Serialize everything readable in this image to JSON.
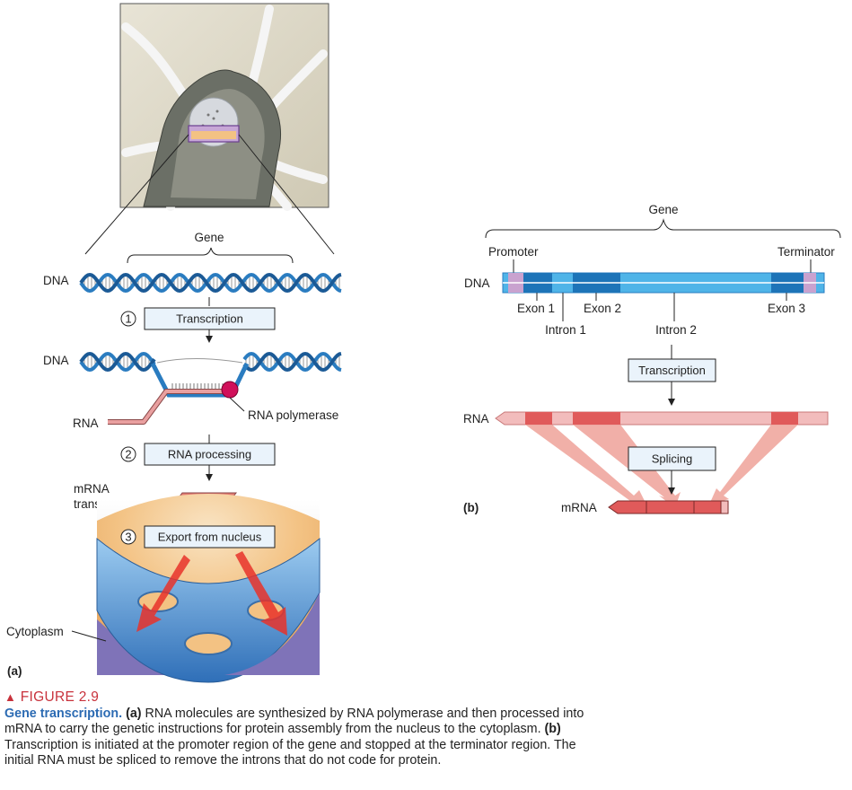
{
  "panel_a": {
    "gene_label": "Gene",
    "dna_label_1": "DNA",
    "dna_label_2": "DNA",
    "rna_label": "RNA",
    "rna_polymerase_label": "RNA polymerase",
    "mrna_label_line1": "mRNA",
    "mrna_label_line2": "transcript",
    "cytoplasm_label": "Cytoplasm",
    "panel_letter": "(a)",
    "steps": [
      {
        "number": "1",
        "label": "Transcription"
      },
      {
        "number": "2",
        "label": "RNA processing"
      },
      {
        "number": "3",
        "label": "Export from nucleus"
      }
    ]
  },
  "panel_b": {
    "gene_label": "Gene",
    "promoter_label": "Promoter",
    "terminator_label": "Terminator",
    "dna_label": "DNA",
    "exon1_label": "Exon 1",
    "exon2_label": "Exon 2",
    "exon3_label": "Exon 3",
    "intron1_label": "Intron 1",
    "intron2_label": "Intron 2",
    "transcription_label": "Transcription",
    "rna_label": "RNA",
    "splicing_label": "Splicing",
    "mrna_label": "mRNA",
    "panel_letter": "(b)"
  },
  "caption": {
    "figure_marker": "▲",
    "figure_number": "FIGURE 2.9",
    "heading": "Gene transcription.",
    "part_a": "(a)",
    "text_a": " RNA molecules are synthesized by RNA polymerase and then processed into mRNA to carry the genetic instructions for protein assembly from the nucleus to the cytoplasm. ",
    "part_b": "(b)",
    "text_b": " Transcription is initiated at the promoter region of the gene and stopped at the terminator region. The initial RNA must be spliced to remove the introns that do not code for protein."
  },
  "colors": {
    "dna_blue": "#2a7cc0",
    "dna_light": "#4fb4e8",
    "exon_blue": "#1d74b8",
    "rna_pink": "#e9a0a0",
    "rna_exon": "#e05a5a",
    "promoter_purple": "#c9a2cf",
    "nucleus_orange": "#f3c283",
    "nucleus_blue": "#4a8ed0",
    "cytoplasm_purple": "#7f73b8",
    "export_arrow": "#e8322a",
    "caption_red": "#c8323c",
    "caption_blue": "#2c6bb3"
  }
}
